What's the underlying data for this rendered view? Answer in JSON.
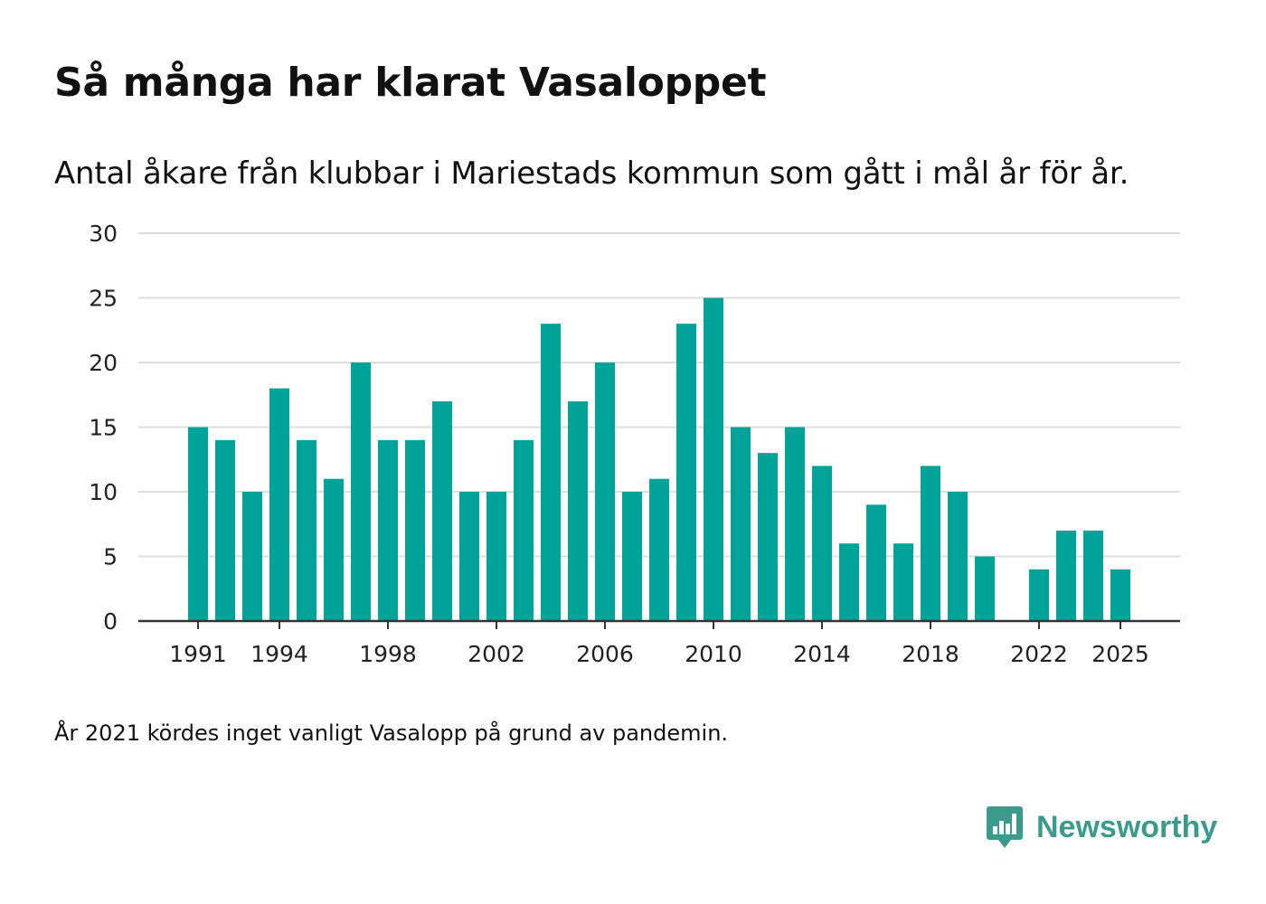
{
  "header": {
    "title": "Så många har klarat Vasaloppet",
    "subtitle": "Antal åkare från klubbar i Mariestads kommun som gått i mål år för år."
  },
  "footer": {
    "note": "År 2021 kördes inget vanligt Vasalopp på grund av pandemin.",
    "brand": "Newsworthy"
  },
  "colors": {
    "bar": "#00a398",
    "grid": "#dddddd",
    "axis": "#333333",
    "brand": "#3a9b8d"
  },
  "chart_data": {
    "type": "bar",
    "title": "Så många har klarat Vasaloppet",
    "xlabel": "",
    "ylabel": "",
    "ylim": [
      0,
      30
    ],
    "yticks": [
      0,
      5,
      10,
      15,
      20,
      25,
      30
    ],
    "xticks": [
      "1991",
      "1994",
      "1998",
      "2002",
      "2006",
      "2010",
      "2014",
      "2018",
      "2022",
      "2025"
    ],
    "categories": [
      "1991",
      "1992",
      "1993",
      "1994",
      "1995",
      "1996",
      "1997",
      "1998",
      "1999",
      "2000",
      "2001",
      "2002",
      "2003",
      "2004",
      "2005",
      "2006",
      "2007",
      "2008",
      "2009",
      "2010",
      "2011",
      "2012",
      "2013",
      "2014",
      "2015",
      "2016",
      "2017",
      "2018",
      "2019",
      "2020",
      "2021",
      "2022",
      "2023",
      "2024",
      "2025"
    ],
    "values": [
      15,
      14,
      10,
      18,
      14,
      11,
      20,
      14,
      14,
      17,
      10,
      10,
      14,
      23,
      17,
      20,
      10,
      11,
      23,
      25,
      15,
      13,
      15,
      12,
      6,
      9,
      6,
      12,
      10,
      5,
      null,
      4,
      7,
      7,
      4
    ],
    "grid": true,
    "legend": "none"
  }
}
